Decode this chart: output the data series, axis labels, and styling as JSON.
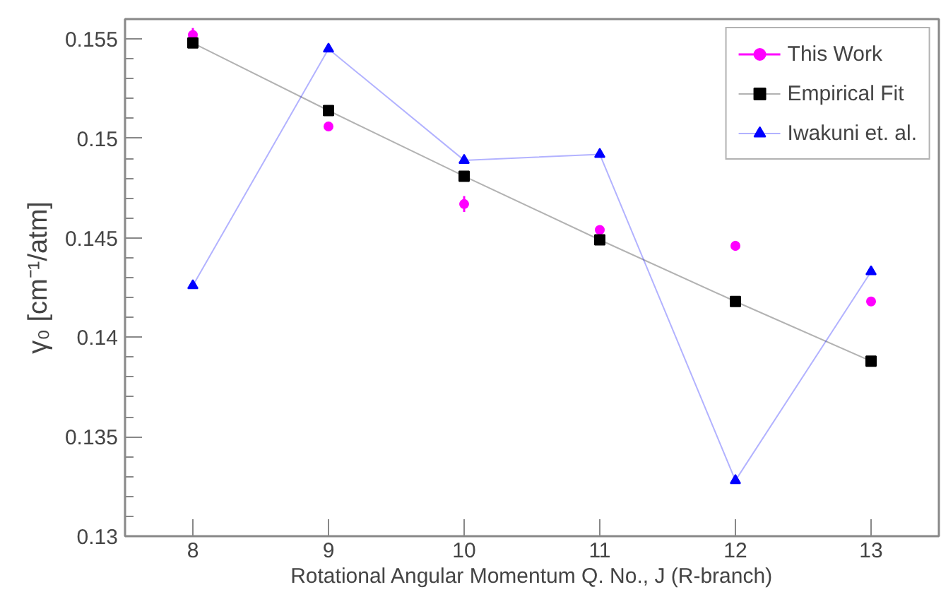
{
  "chart_data": {
    "type": "scatter",
    "xlabel": "Rotational Angular Momentum Q. No., J (R-branch)",
    "ylabel": "γ₀ [cm⁻¹/atm]",
    "x": [
      8,
      9,
      10,
      11,
      12,
      13
    ],
    "xlim": [
      7.5,
      13.5
    ],
    "xticks": [
      8,
      9,
      10,
      11,
      12,
      13
    ],
    "ylim": [
      0.13,
      0.156
    ],
    "yticks": [
      0.13,
      0.135,
      0.14,
      0.145,
      0.15,
      0.155
    ],
    "grid": false,
    "legend": "top right",
    "series": [
      {
        "name": "This Work",
        "type": "scatter",
        "marker": "circle",
        "color": "#ff00ff",
        "values": [
          0.1552,
          0.1506,
          0.1467,
          0.1454,
          0.1446,
          0.1418
        ],
        "errors": [
          0.00035,
          null,
          0.0004,
          null,
          0.00025,
          null
        ]
      },
      {
        "name": "Empirical Fit",
        "type": "line",
        "marker": "square",
        "color": "#000000",
        "values": [
          0.1548,
          0.1514,
          0.1481,
          0.1449,
          0.1418,
          0.1388
        ]
      },
      {
        "name": "Iwakuni et. al.",
        "type": "line",
        "marker": "triangle",
        "color": "#0000ff",
        "values": [
          0.1426,
          0.1545,
          0.1489,
          0.1492,
          0.1328,
          0.1433
        ]
      }
    ]
  }
}
